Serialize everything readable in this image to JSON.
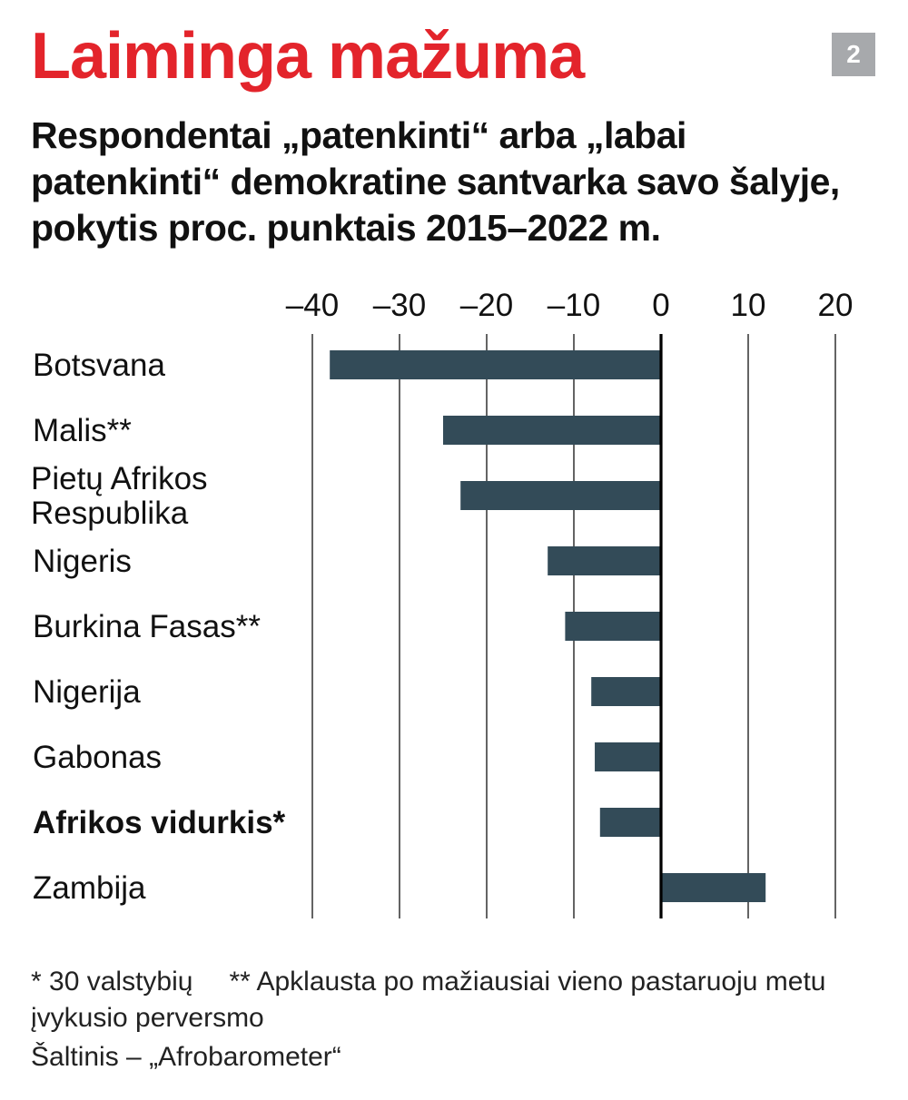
{
  "title": "Laiminga mažuma",
  "badge": "2",
  "subtitle": "Respondentai „patenkinti“ arba „labai patenkinti“ demokratine santvarka savo šalyje, pokytis proc. punktais 2015–2022 m.",
  "chart_data": {
    "type": "bar",
    "orientation": "horizontal",
    "categories": [
      "Botsvana",
      "Malis**",
      "Pietų Afrikos Respublika",
      "Nigeris",
      "Burkina Fasas**",
      "Nigerija",
      "Gabonas",
      "Afrikos vidurkis*",
      "Zambija"
    ],
    "category_lines": [
      [
        "Botsvana"
      ],
      [
        "Malis**"
      ],
      [
        "Pietų Afrikos",
        "Respublika"
      ],
      [
        "Nigeris"
      ],
      [
        "Burkina Fasas**"
      ],
      [
        "Nigerija"
      ],
      [
        "Gabonas"
      ],
      [
        "Afrikos vidurkis*"
      ],
      [
        "Zambija"
      ]
    ],
    "bold_categories": [
      "Afrikos vidurkis*"
    ],
    "values": [
      -38,
      -25,
      -23,
      -13,
      -11,
      -8,
      -7.6,
      -7,
      12
    ],
    "xlim": [
      -40,
      20
    ],
    "ticks": [
      -40,
      -30,
      -20,
      -10,
      0,
      10,
      20
    ],
    "tick_labels": [
      "–40",
      "–30",
      "–20",
      "–10",
      "0",
      "10",
      "20"
    ],
    "x_axis_position": "top",
    "grid": true,
    "bar_color": "#334b58"
  },
  "footnotes": {
    "note1": "* 30 valstybių",
    "note2": "** Apklausta po mažiausiai vieno pastaruoju metu įvykusio perversmo",
    "source": "Šaltinis – „Afrobarometer“"
  }
}
